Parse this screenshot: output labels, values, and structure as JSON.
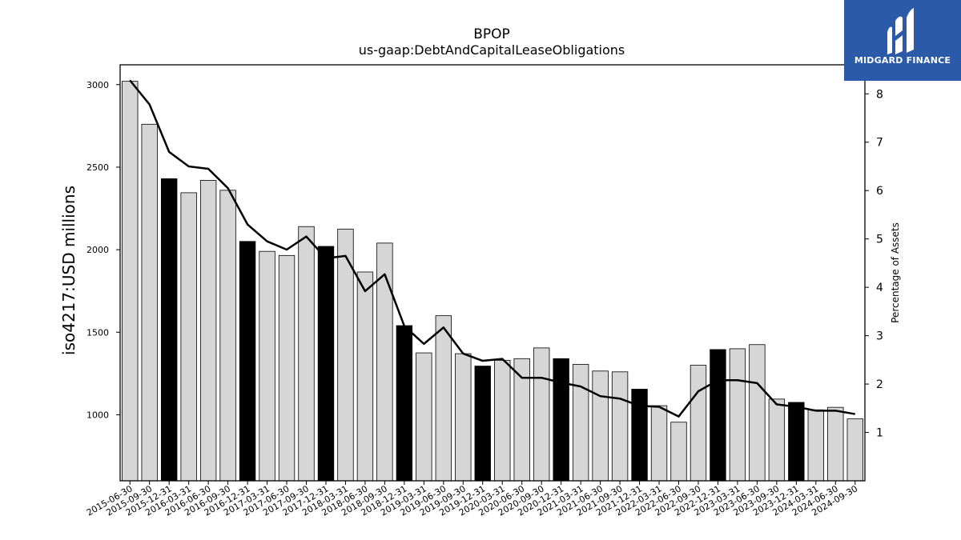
{
  "chart_data": {
    "type": "bar",
    "title": "BPOP",
    "subtitle": "us-gaap:DebtAndCapitalLeaseObligations",
    "ylabel": "iso4217:USD  millions",
    "y2label": "Percentage of Assets",
    "ylim": [
      600,
      3120
    ],
    "y2lim": [
      0,
      8.6
    ],
    "yticks": [
      1000,
      1500,
      2000,
      2500,
      3000
    ],
    "y2ticks": [
      1,
      2,
      3,
      4,
      5,
      6,
      7,
      8
    ],
    "categories": [
      "2015-06-30",
      "2015-09-30",
      "2015-12-31",
      "2016-03-31",
      "2016-06-30",
      "2016-09-30",
      "2016-12-31",
      "2017-03-31",
      "2017-06-30",
      "2017-09-30",
      "2017-12-31",
      "2018-03-31",
      "2018-06-30",
      "2018-09-30",
      "2018-12-31",
      "2019-03-31",
      "2019-06-30",
      "2019-09-30",
      "2019-12-31",
      "2020-03-31",
      "2020-06-30",
      "2020-09-30",
      "2020-12-31",
      "2021-03-31",
      "2021-06-30",
      "2021-09-30",
      "2021-12-31",
      "2022-03-31",
      "2022-06-30",
      "2022-09-30",
      "2022-12-31",
      "2023-03-31",
      "2023-06-30",
      "2023-09-30",
      "2023-12-31",
      "2024-03-31",
      "2024-06-30",
      "2024-09-30"
    ],
    "series": [
      {
        "type": "bar",
        "values": [
          3020,
          2760,
          2430,
          2345,
          2420,
          2360,
          2050,
          1990,
          1965,
          2140,
          2020,
          2125,
          1865,
          2040,
          1540,
          1375,
          1600,
          1370,
          1295,
          1330,
          1340,
          1405,
          1340,
          1305,
          1265,
          1260,
          1155,
          1055,
          955,
          1300,
          1395,
          1400,
          1425,
          1095,
          1075,
          1030,
          1045,
          975
        ],
        "highlight": [
          false,
          false,
          true,
          false,
          false,
          false,
          true,
          false,
          false,
          false,
          true,
          false,
          false,
          false,
          true,
          false,
          false,
          false,
          true,
          false,
          false,
          false,
          true,
          false,
          false,
          false,
          true,
          false,
          false,
          false,
          true,
          false,
          false,
          false,
          true,
          false,
          false,
          false
        ]
      },
      {
        "type": "line",
        "axis": "right",
        "values": [
          8.28,
          7.78,
          6.8,
          6.5,
          6.45,
          6.05,
          5.3,
          4.95,
          4.78,
          5.05,
          4.6,
          4.65,
          3.92,
          4.27,
          3.2,
          2.83,
          3.17,
          2.63,
          2.48,
          2.52,
          2.13,
          2.13,
          2.03,
          1.95,
          1.75,
          1.7,
          1.55,
          1.53,
          1.33,
          1.85,
          2.08,
          2.08,
          2.02,
          1.58,
          1.53,
          1.45,
          1.45,
          1.38
        ]
      }
    ],
    "colors": {
      "bar": "#d6d6d6",
      "bar_highlight": "#000000",
      "line": "#000000"
    }
  },
  "logo": {
    "text": "MIDGARD FINANCE",
    "bg": "#2b5aa8"
  }
}
